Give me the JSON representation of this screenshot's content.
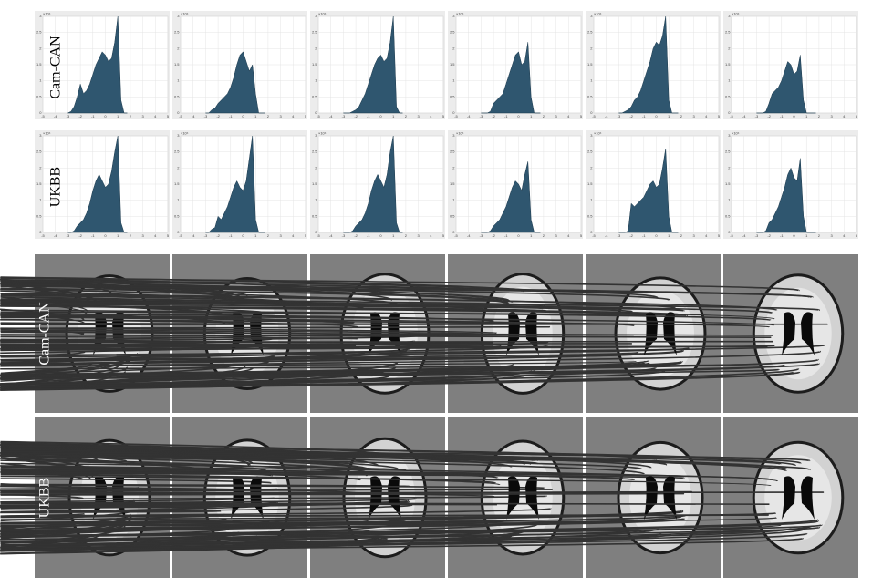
{
  "histogram_rows": [
    "Cam-CAN",
    "UKBB"
  ],
  "image_rows": [
    "Cam-CAN",
    "UKBB"
  ],
  "chart_data": [
    {
      "type": "area",
      "multiplier": "×10⁴",
      "color": "#2f566f",
      "x": [
        -3,
        -2.75,
        -2.5,
        -2.25,
        -2,
        -1.75,
        -1.5,
        -1.25,
        -1,
        -0.75,
        -0.5,
        -0.25,
        0,
        0.25,
        0.5,
        0.75,
        1,
        1.25,
        1.5,
        1.75
      ],
      "values": [
        0,
        0.05,
        0.2,
        0.5,
        0.9,
        0.6,
        0.7,
        0.9,
        1.2,
        1.5,
        1.7,
        1.9,
        1.8,
        1.6,
        1.7,
        2.2,
        3.0,
        0.4,
        0,
        0
      ],
      "xlim": [
        -5,
        5
      ],
      "ylim": [
        0,
        3
      ],
      "xticks": [
        -5,
        -4,
        -3,
        -2,
        -1,
        0,
        1,
        2,
        3,
        4,
        5
      ],
      "yticks": [
        0,
        0.5,
        1,
        1.5,
        2,
        2.5,
        3
      ],
      "grid": true
    },
    {
      "type": "area",
      "multiplier": "×10⁴",
      "color": "#2f566f",
      "x": [
        -3,
        -2.75,
        -2.5,
        -2.25,
        -2,
        -1.75,
        -1.5,
        -1.25,
        -1,
        -0.75,
        -0.5,
        -0.25,
        0,
        0.25,
        0.5,
        0.75,
        1,
        1.25,
        1.5,
        1.75
      ],
      "values": [
        0,
        0,
        0.1,
        0.15,
        0.3,
        0.4,
        0.5,
        0.6,
        0.8,
        1.1,
        1.5,
        1.8,
        1.9,
        1.6,
        1.3,
        1.5,
        0.6,
        0,
        0,
        0
      ],
      "xlim": [
        -5,
        5
      ],
      "ylim": [
        0,
        3
      ],
      "xticks": [
        -5,
        -4,
        -3,
        -2,
        -1,
        0,
        1,
        2,
        3,
        4,
        5
      ],
      "yticks": [
        0,
        0.5,
        1,
        1.5,
        2,
        2.5,
        3
      ],
      "grid": true
    },
    {
      "type": "area",
      "multiplier": "×10⁴",
      "color": "#2f566f",
      "x": [
        -3,
        -2.75,
        -2.5,
        -2.25,
        -2,
        -1.75,
        -1.5,
        -1.25,
        -1,
        -0.75,
        -0.5,
        -0.25,
        0,
        0.25,
        0.5,
        0.75,
        1,
        1.25,
        1.5,
        1.75
      ],
      "values": [
        0,
        0,
        0,
        0.05,
        0.1,
        0.2,
        0.4,
        0.6,
        0.9,
        1.2,
        1.5,
        1.7,
        1.8,
        1.6,
        1.7,
        2.2,
        3.0,
        0.2,
        0,
        0
      ],
      "xlim": [
        -5,
        5
      ],
      "ylim": [
        0,
        3
      ],
      "xticks": [
        -5,
        -4,
        -3,
        -2,
        -1,
        0,
        1,
        2,
        3,
        4,
        5
      ],
      "yticks": [
        0,
        0.5,
        1,
        1.5,
        2,
        2.5,
        3
      ],
      "grid": true
    },
    {
      "type": "area",
      "multiplier": "×10⁴",
      "color": "#2f566f",
      "x": [
        -3,
        -2.75,
        -2.5,
        -2.25,
        -2,
        -1.75,
        -1.5,
        -1.25,
        -1,
        -0.75,
        -0.5,
        -0.25,
        0,
        0.25,
        0.5,
        0.75,
        1,
        1.25,
        1.5,
        1.75
      ],
      "values": [
        0,
        0,
        0,
        0.05,
        0.3,
        0.4,
        0.5,
        0.6,
        0.9,
        1.2,
        1.5,
        1.8,
        1.9,
        1.5,
        1.6,
        2.2,
        0.5,
        0,
        0,
        0
      ],
      "xlim": [
        -5,
        5
      ],
      "ylim": [
        0,
        3
      ],
      "xticks": [
        -5,
        -4,
        -3,
        -2,
        -1,
        0,
        1,
        2,
        3,
        4,
        5
      ],
      "yticks": [
        0,
        0.5,
        1,
        1.5,
        2,
        2.5,
        3
      ],
      "grid": true
    },
    {
      "type": "area",
      "multiplier": "×10⁴",
      "color": "#2f566f",
      "x": [
        -3,
        -2.75,
        -2.5,
        -2.25,
        -2,
        -1.75,
        -1.5,
        -1.25,
        -1,
        -0.75,
        -0.5,
        -0.25,
        0,
        0.25,
        0.5,
        0.75,
        1,
        1.25,
        1.5,
        1.75
      ],
      "values": [
        0,
        0,
        0.05,
        0.1,
        0.2,
        0.4,
        0.5,
        0.7,
        1.0,
        1.3,
        1.6,
        2.0,
        2.2,
        2.1,
        2.4,
        3.0,
        0.4,
        0,
        0,
        0
      ],
      "xlim": [
        -5,
        5
      ],
      "ylim": [
        0,
        3
      ],
      "xticks": [
        -5,
        -4,
        -3,
        -2,
        -1,
        0,
        1,
        2,
        3,
        4,
        5
      ],
      "yticks": [
        0,
        0.5,
        1,
        1.5,
        2,
        2.5,
        3
      ],
      "grid": true
    },
    {
      "type": "area",
      "multiplier": "×10⁴",
      "color": "#2f566f",
      "x": [
        -3,
        -2.75,
        -2.5,
        -2.25,
        -2,
        -1.75,
        -1.5,
        -1.25,
        -1,
        -0.75,
        -0.5,
        -0.25,
        0,
        0.25,
        0.5,
        0.75,
        1,
        1.25,
        1.5,
        1.75
      ],
      "values": [
        0,
        0,
        0,
        0.05,
        0.3,
        0.6,
        0.7,
        0.8,
        1.0,
        1.3,
        1.6,
        1.5,
        1.2,
        1.3,
        1.8,
        0.4,
        0,
        0,
        0,
        0
      ],
      "xlim": [
        -5,
        5
      ],
      "ylim": [
        0,
        3
      ],
      "xticks": [
        -5,
        -4,
        -3,
        -2,
        -1,
        0,
        1,
        2,
        3,
        4,
        5
      ],
      "yticks": [
        0,
        0.5,
        1,
        1.5,
        2,
        2.5,
        3
      ],
      "grid": true
    },
    {
      "type": "area",
      "multiplier": "×10⁴",
      "color": "#2f566f",
      "x": [
        -3,
        -2.75,
        -2.5,
        -2.25,
        -2,
        -1.75,
        -1.5,
        -1.25,
        -1,
        -0.75,
        -0.5,
        -0.25,
        0,
        0.25,
        0.5,
        0.75,
        1,
        1.25,
        1.5,
        1.75
      ],
      "values": [
        0,
        0,
        0.05,
        0.2,
        0.3,
        0.4,
        0.6,
        0.9,
        1.3,
        1.6,
        1.8,
        1.6,
        1.4,
        1.5,
        1.9,
        2.5,
        3.0,
        0.3,
        0,
        0
      ],
      "xlim": [
        -5,
        5
      ],
      "ylim": [
        0,
        3
      ],
      "xticks": [
        -5,
        -4,
        -3,
        -2,
        -1,
        0,
        1,
        2,
        3,
        4,
        5
      ],
      "yticks": [
        0,
        0.5,
        1,
        1.5,
        2,
        2.5,
        3
      ],
      "grid": true
    },
    {
      "type": "area",
      "multiplier": "×10⁴",
      "color": "#2f566f",
      "x": [
        -3,
        -2.75,
        -2.5,
        -2.25,
        -2,
        -1.75,
        -1.5,
        -1.25,
        -1,
        -0.75,
        -0.5,
        -0.25,
        0,
        0.25,
        0.5,
        0.75,
        1,
        1.25,
        1.5,
        1.75
      ],
      "values": [
        0,
        0,
        0.1,
        0.15,
        0.5,
        0.4,
        0.6,
        0.8,
        1.1,
        1.4,
        1.6,
        1.4,
        1.3,
        1.6,
        2.3,
        3.0,
        0.4,
        0,
        0,
        0
      ],
      "xlim": [
        -5,
        5
      ],
      "ylim": [
        0,
        3
      ],
      "xticks": [
        -5,
        -4,
        -3,
        -2,
        -1,
        0,
        1,
        2,
        3,
        4,
        5
      ],
      "yticks": [
        0,
        0.5,
        1,
        1.5,
        2,
        2.5,
        3
      ],
      "grid": true
    },
    {
      "type": "area",
      "multiplier": "×10⁴",
      "color": "#2f566f",
      "x": [
        -3,
        -2.75,
        -2.5,
        -2.25,
        -2,
        -1.75,
        -1.5,
        -1.25,
        -1,
        -0.75,
        -0.5,
        -0.25,
        0,
        0.25,
        0.5,
        0.75,
        1,
        1.25,
        1.5,
        1.75
      ],
      "values": [
        0,
        0,
        0,
        0.05,
        0.2,
        0.3,
        0.4,
        0.6,
        0.9,
        1.3,
        1.6,
        1.8,
        1.6,
        1.4,
        1.8,
        2.5,
        3.0,
        0.3,
        0,
        0
      ],
      "xlim": [
        -5,
        5
      ],
      "ylim": [
        0,
        3
      ],
      "xticks": [
        -5,
        -4,
        -3,
        -2,
        -1,
        0,
        1,
        2,
        3,
        4,
        5
      ],
      "yticks": [
        0,
        0.5,
        1,
        1.5,
        2,
        2.5,
        3
      ],
      "grid": true
    },
    {
      "type": "area",
      "multiplier": "×10⁴",
      "color": "#2f566f",
      "x": [
        -3,
        -2.75,
        -2.5,
        -2.25,
        -2,
        -1.75,
        -1.5,
        -1.25,
        -1,
        -0.75,
        -0.5,
        -0.25,
        0,
        0.25,
        0.5,
        0.75,
        1,
        1.25,
        1.5,
        1.75
      ],
      "values": [
        0,
        0,
        0,
        0.05,
        0.2,
        0.3,
        0.4,
        0.6,
        0.8,
        1.1,
        1.4,
        1.6,
        1.5,
        1.3,
        1.8,
        2.2,
        0.4,
        0,
        0,
        0
      ],
      "xlim": [
        -5,
        5
      ],
      "ylim": [
        0,
        3
      ],
      "xticks": [
        -5,
        -4,
        -3,
        -2,
        -1,
        0,
        1,
        2,
        3,
        4,
        5
      ],
      "yticks": [
        0,
        0.5,
        1,
        1.5,
        2,
        2.5,
        3
      ],
      "grid": true
    },
    {
      "type": "area",
      "multiplier": "×10⁴",
      "color": "#2f566f",
      "x": [
        -3,
        -2.75,
        -2.5,
        -2.25,
        -2,
        -1.75,
        -1.5,
        -1.25,
        -1,
        -0.75,
        -0.5,
        -0.25,
        0,
        0.25,
        0.5,
        0.75,
        1,
        1.25,
        1.5,
        1.75
      ],
      "values": [
        0,
        0,
        0,
        0.05,
        0.9,
        0.8,
        0.9,
        1.0,
        1.1,
        1.3,
        1.5,
        1.6,
        1.4,
        1.5,
        2.0,
        2.6,
        0.5,
        0,
        0,
        0
      ],
      "xlim": [
        -5,
        5
      ],
      "ylim": [
        0,
        3
      ],
      "xticks": [
        -5,
        -4,
        -3,
        -2,
        -1,
        0,
        1,
        2,
        3,
        4,
        5
      ],
      "yticks": [
        0,
        0.5,
        1,
        1.5,
        2,
        2.5,
        3
      ],
      "grid": true
    },
    {
      "type": "area",
      "multiplier": "×10⁴",
      "color": "#2f566f",
      "x": [
        -3,
        -2.75,
        -2.5,
        -2.25,
        -2,
        -1.75,
        -1.5,
        -1.25,
        -1,
        -0.75,
        -0.5,
        -0.25,
        0,
        0.25,
        0.5,
        0.75,
        1,
        1.25,
        1.5,
        1.75
      ],
      "values": [
        0,
        0,
        0,
        0.05,
        0.3,
        0.4,
        0.6,
        0.8,
        1.1,
        1.4,
        1.8,
        2.0,
        1.7,
        1.6,
        2.3,
        0.5,
        0,
        0,
        0,
        0
      ],
      "xlim": [
        -5,
        5
      ],
      "ylim": [
        0,
        3
      ],
      "xticks": [
        -5,
        -4,
        -3,
        -2,
        -1,
        0,
        1,
        2,
        3,
        4,
        5
      ],
      "yticks": [
        0,
        0.5,
        1,
        1.5,
        2,
        2.5,
        3
      ],
      "grid": true
    }
  ]
}
